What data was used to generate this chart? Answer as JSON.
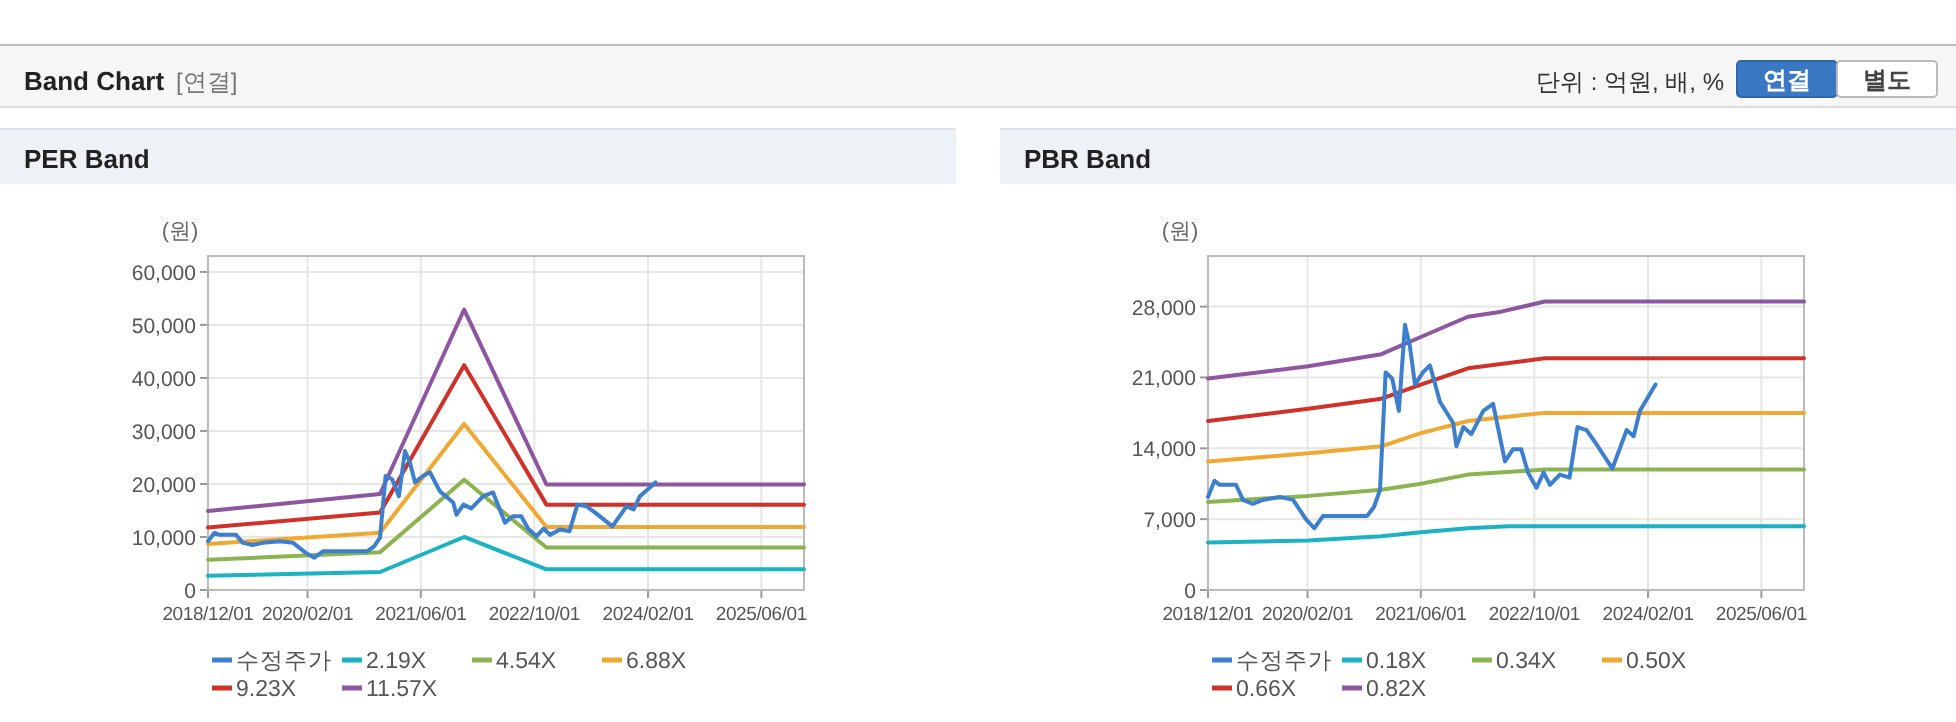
{
  "chart_data": [
    {
      "type": "other",
      "title": "Band Chart",
      "annotations": [
        "[연결]",
        "단위 : 억원, 배, %",
        "연결",
        "별도"
      ]
    },
    {
      "type": "line",
      "title": "PER Band",
      "ylabel": "(원)",
      "grid": true,
      "legend": "bottom",
      "xlim": [
        "2018-12-01",
        "2025-12-01"
      ],
      "xticks": [
        {
          "value": "2018-12-01",
          "label": "2018/12/01"
        },
        {
          "value": "2020-02-01",
          "label": "2020/02/01"
        },
        {
          "value": "2021-06-01",
          "label": "2021/06/01"
        },
        {
          "value": "2022-10-01",
          "label": "2022/10/01"
        },
        {
          "value": "2024-02-01",
          "label": "2024/02/01"
        },
        {
          "value": "2025-06-01",
          "label": "2025/06/01"
        }
      ],
      "ylim": [
        0,
        63000
      ],
      "yticks": [
        0,
        {
          "value": 10000,
          "label": "10,000"
        },
        {
          "value": 20000,
          "label": "20,000"
        },
        {
          "value": 30000,
          "label": "30,000"
        },
        {
          "value": 40000,
          "label": "40,000"
        },
        {
          "value": 50000,
          "label": "50,000"
        },
        {
          "value": 60000,
          "label": "60,000"
        }
      ],
      "series": [
        {
          "name": "수정주가",
          "color": "#3d7fcf",
          "x": [
            "2018-12-01",
            "2018-12-29",
            "2019-01-19",
            "2019-03-31",
            "2019-04-30",
            "2019-06-11",
            "2019-07-24",
            "2019-10-05",
            "2019-12-01",
            "2020-01-25",
            "2020-03-01",
            "2020-04-07",
            "2020-07-15",
            "2020-10-13",
            "2020-11-12",
            "2020-12-08",
            "2021-01-01",
            "2021-01-29",
            "2021-02-27",
            "2021-03-25",
            "2021-04-15",
            "2021-05-07",
            "2021-06-10",
            "2021-07-10",
            "2021-08-22",
            "2021-10-18",
            "2021-11-01",
            "2021-12-01",
            "2022-01-04",
            "2022-02-24",
            "2022-04-07",
            "2022-05-28",
            "2022-07-01",
            "2022-08-06",
            "2022-09-04",
            "2022-10-10",
            "2022-11-10",
            "2022-12-07",
            "2023-01-19",
            "2023-03-01",
            "2023-04-04",
            "2023-05-13",
            "2023-06-19",
            "2023-09-01",
            "2023-11-01",
            "2023-12-01",
            "2023-12-28",
            "2024-03-04"
          ],
          "values": [
            9200,
            10800,
            10400,
            10400,
            8900,
            8500,
            8900,
            9200,
            8900,
            7000,
            6100,
            7300,
            7300,
            7300,
            8200,
            9900,
            21500,
            20900,
            17700,
            26200,
            24100,
            20300,
            21500,
            22200,
            18600,
            16500,
            14200,
            16100,
            15400,
            17700,
            18400,
            12700,
            13900,
            13900,
            11600,
            10100,
            11600,
            10400,
            11400,
            11100,
            16100,
            15800,
            14600,
            12000,
            15800,
            15200,
            17700,
            20300
          ]
        },
        {
          "name": "2.19X",
          "color": "#1bb3c4",
          "x": [
            "2018-12-01",
            "2020-12-08",
            "2021-12-04",
            "2022-11-22",
            "2025-12-01"
          ],
          "values": [
            2700,
            3400,
            10000,
            3900,
            3900
          ]
        },
        {
          "name": "4.54X",
          "color": "#8bb450",
          "x": [
            "2018-12-01",
            "2020-12-08",
            "2021-12-04",
            "2022-11-22",
            "2025-12-01"
          ],
          "values": [
            5700,
            7100,
            20800,
            8000,
            8000
          ]
        },
        {
          "name": "6.88X",
          "color": "#f0a830",
          "x": [
            "2018-12-01",
            "2020-12-08",
            "2021-12-04",
            "2022-11-22",
            "2025-12-01"
          ],
          "values": [
            8700,
            10800,
            31300,
            11900,
            11900
          ]
        },
        {
          "name": "9.23X",
          "color": "#d0322a",
          "x": [
            "2018-12-01",
            "2020-12-08",
            "2021-12-04",
            "2022-11-22",
            "2025-12-01"
          ],
          "values": [
            11800,
            14600,
            42400,
            16100,
            16100
          ]
        },
        {
          "name": "11.57X",
          "color": "#8e55a0",
          "x": [
            "2018-12-01",
            "2020-12-08",
            "2021-12-04",
            "2022-11-22",
            "2025-12-01"
          ],
          "values": [
            14900,
            18100,
            52900,
            19900,
            19900
          ]
        }
      ]
    },
    {
      "type": "line",
      "title": "PBR Band",
      "ylabel": "(원)",
      "grid": true,
      "legend": "bottom",
      "xlim": [
        "2018-12-01",
        "2025-12-01"
      ],
      "xticks": [
        {
          "value": "2018-12-01",
          "label": "2018/12/01"
        },
        {
          "value": "2020-02-01",
          "label": "2020/02/01"
        },
        {
          "value": "2021-06-01",
          "label": "2021/06/01"
        },
        {
          "value": "2022-10-01",
          "label": "2022/10/01"
        },
        {
          "value": "2024-02-01",
          "label": "2024/02/01"
        },
        {
          "value": "2025-06-01",
          "label": "2025/06/01"
        }
      ],
      "ylim": [
        0,
        33000
      ],
      "yticks": [
        0,
        {
          "value": 7000,
          "label": "7,000"
        },
        {
          "value": 14000,
          "label": "14,000"
        },
        {
          "value": 21000,
          "label": "21,000"
        },
        {
          "value": 28000,
          "label": "28,000"
        }
      ],
      "series": [
        {
          "name": "수정주가",
          "color": "#3d7fcf",
          "x": [
            "2018-12-01",
            "2018-12-29",
            "2019-01-19",
            "2019-03-31",
            "2019-04-30",
            "2019-06-11",
            "2019-07-24",
            "2019-10-05",
            "2019-12-01",
            "2020-01-25",
            "2020-03-01",
            "2020-04-07",
            "2020-07-15",
            "2020-10-13",
            "2020-11-12",
            "2020-12-08",
            "2021-01-01",
            "2021-01-29",
            "2021-02-27",
            "2021-03-25",
            "2021-04-15",
            "2021-05-07",
            "2021-06-10",
            "2021-07-10",
            "2021-08-22",
            "2021-10-18",
            "2021-11-01",
            "2021-12-01",
            "2022-01-04",
            "2022-02-24",
            "2022-04-07",
            "2022-05-28",
            "2022-07-01",
            "2022-08-06",
            "2022-09-04",
            "2022-10-10",
            "2022-11-10",
            "2022-12-07",
            "2023-01-19",
            "2023-03-01",
            "2023-04-04",
            "2023-05-13",
            "2023-06-19",
            "2023-09-01",
            "2023-11-01",
            "2023-12-01",
            "2023-12-28",
            "2024-03-04"
          ],
          "values": [
            9200,
            10800,
            10400,
            10400,
            8900,
            8500,
            8900,
            9200,
            8900,
            7000,
            6100,
            7300,
            7300,
            7300,
            8200,
            9900,
            21500,
            20900,
            17700,
            26200,
            24100,
            20300,
            21500,
            22200,
            18600,
            16500,
            14200,
            16100,
            15400,
            17700,
            18400,
            12700,
            13900,
            13900,
            11600,
            10100,
            11600,
            10400,
            11400,
            11100,
            16100,
            15800,
            14600,
            12000,
            15800,
            15200,
            17700,
            20300
          ]
        },
        {
          "name": "0.18X",
          "color": "#1bb3c4",
          "x": [
            "2018-12-01",
            "2020-02-04",
            "2020-12-14",
            "2021-06-01",
            "2021-12-20",
            "2022-06-10",
            "2025-12-01"
          ],
          "values": [
            4700,
            4900,
            5300,
            5700,
            6100,
            6300,
            6300
          ]
        },
        {
          "name": "0.34X",
          "color": "#8bb450",
          "x": [
            "2018-12-01",
            "2020-02-04",
            "2020-12-14",
            "2021-06-01",
            "2021-12-20",
            "2022-11-15",
            "2025-12-01"
          ],
          "values": [
            8700,
            9300,
            9900,
            10500,
            11400,
            11900,
            11900
          ]
        },
        {
          "name": "0.50X",
          "color": "#f0a830",
          "x": [
            "2018-12-01",
            "2020-02-04",
            "2020-12-14",
            "2021-06-01",
            "2021-12-20",
            "2022-11-15",
            "2025-12-01"
          ],
          "values": [
            12700,
            13500,
            14200,
            15500,
            16700,
            17500,
            17500
          ]
        },
        {
          "name": "0.66X",
          "color": "#d0322a",
          "x": [
            "2018-12-01",
            "2020-02-04",
            "2020-12-14",
            "2021-06-01",
            "2021-12-20",
            "2022-11-15",
            "2025-12-01"
          ],
          "values": [
            16700,
            17900,
            18900,
            20300,
            21900,
            22900,
            22900
          ]
        },
        {
          "name": "0.82X",
          "color": "#8e55a0",
          "x": [
            "2018-12-01",
            "2020-02-04",
            "2020-12-14",
            "2021-06-01",
            "2021-12-20",
            "2022-05-12",
            "2022-11-15",
            "2025-12-01"
          ],
          "values": [
            20900,
            22100,
            23300,
            25000,
            27000,
            27500,
            28500,
            28500
          ]
        }
      ]
    }
  ]
}
